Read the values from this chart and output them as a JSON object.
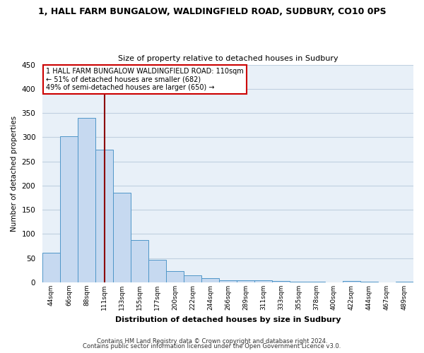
{
  "title1": "1, HALL FARM BUNGALOW, WALDINGFIELD ROAD, SUDBURY, CO10 0PS",
  "title2": "Size of property relative to detached houses in Sudbury",
  "xlabel": "Distribution of detached houses by size in Sudbury",
  "ylabel": "Number of detached properties",
  "bar_labels": [
    "44sqm",
    "66sqm",
    "88sqm",
    "111sqm",
    "133sqm",
    "155sqm",
    "177sqm",
    "200sqm",
    "222sqm",
    "244sqm",
    "266sqm",
    "289sqm",
    "311sqm",
    "333sqm",
    "355sqm",
    "378sqm",
    "400sqm",
    "422sqm",
    "444sqm",
    "467sqm",
    "489sqm"
  ],
  "bar_values": [
    62,
    302,
    340,
    275,
    185,
    88,
    46,
    24,
    15,
    9,
    5,
    4,
    4,
    3,
    2,
    1,
    0,
    3,
    1,
    0,
    2
  ],
  "bar_color": "#c6d9f0",
  "bar_edge_color": "#4f96c8",
  "marker_label": "1 HALL FARM BUNGALOW WALDINGFIELD ROAD: 110sqm",
  "annotation_line1": "← 51% of detached houses are smaller (682)",
  "annotation_line2": "49% of semi-detached houses are larger (650) →",
  "vline_color": "#8b0000",
  "box_edge_color": "#cc0000",
  "ylim": [
    0,
    450
  ],
  "yticks": [
    0,
    50,
    100,
    150,
    200,
    250,
    300,
    350,
    400,
    450
  ],
  "footer1": "Contains HM Land Registry data © Crown copyright and database right 2024.",
  "footer2": "Contains public sector information licensed under the Open Government Licence v3.0.",
  "fig_bg_color": "#ffffff",
  "ax_bg_color": "#e8f0f8",
  "grid_color": "#c0d0e0"
}
